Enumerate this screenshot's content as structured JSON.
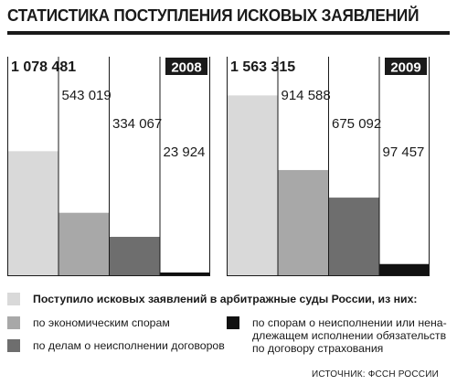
{
  "title": "СТАТИСТИКА ПОСТУПЛЕНИЯ ИСКОВЫХ ЗАЯВЛЕНИЙ",
  "colors": {
    "total": "#d9d9d9",
    "economic": "#a8a8a8",
    "contracts": "#6e6e6e",
    "insurance": "#111111",
    "axis": "#1a1a1a"
  },
  "chart_data": [
    {
      "type": "bar",
      "year": "2008",
      "categories": [
        "total",
        "economic",
        "contracts",
        "insurance"
      ],
      "values": [
        1078481,
        543019,
        334067,
        23924
      ],
      "labels": [
        "1 078 481",
        "543 019",
        "334 067",
        "23 924"
      ],
      "ylim": [
        0,
        1900000
      ]
    },
    {
      "type": "bar",
      "year": "2009",
      "categories": [
        "total",
        "economic",
        "contracts",
        "insurance"
      ],
      "values": [
        1563315,
        914588,
        675092,
        97457
      ],
      "labels": [
        "1 563 315",
        "914 588",
        "675 092",
        "97 457"
      ],
      "ylim": [
        0,
        1900000
      ]
    }
  ],
  "legend": {
    "total": "Поступило исковых заявлений в арбитражные суды России, из них:",
    "economic": "по экономическим спорам",
    "contracts": "по делам о неисполнении договоров",
    "insurance": "по спорам о неисполнении или нена-\nдлежащем исполнении обязательств\nпо договору страхования"
  },
  "source": "ИСТОЧНИК: ФССН РОССИИ"
}
